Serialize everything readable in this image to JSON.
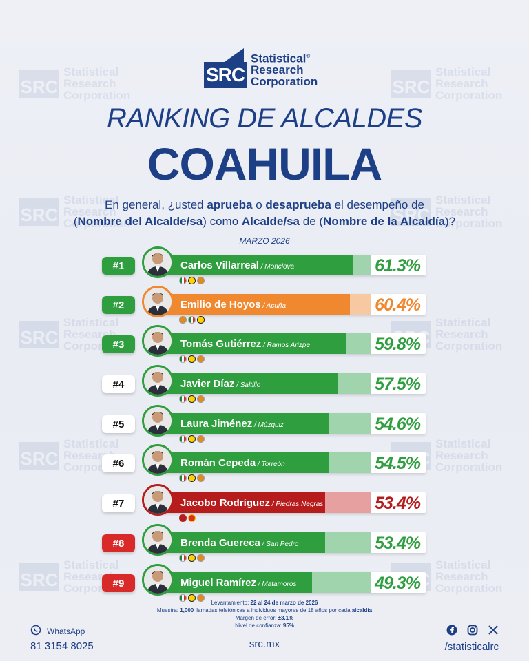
{
  "brand": {
    "logo_letters": "SRC",
    "name_line1": "Statistical",
    "name_line2": "Research",
    "name_line3": "Corporation",
    "reg": "®"
  },
  "header": {
    "title": "RANKING DE ALCALDES",
    "state": "COAHUILA",
    "q_part1": "En general, ¿usted ",
    "q_aprueba": "aprueba",
    "q_o": " o ",
    "q_desaprueba": "desaprueba",
    "q_part2": " el desempeño de",
    "q_paren_open": "(",
    "q_nombre": "Nombre del Alcalde/sa",
    "q_como": ") como ",
    "q_alcalde": "Alcalde/sa",
    "q_de": " de (",
    "q_alcaldia": "Nombre de la Alcaldía",
    "q_end": ")?",
    "date": "MARZO 2026"
  },
  "ranking": [
    {
      "rank": "#1",
      "name": "Carlos Villarreal",
      "city": " / Monclova",
      "pct": "61.3%",
      "value": 61.3
    },
    {
      "rank": "#2",
      "name": "Emilio de Hoyos",
      "city": " / Acuña",
      "pct": "60.4%",
      "value": 60.4
    },
    {
      "rank": "#3",
      "name": "Tomás Gutiérrez",
      "city": " / Ramos Arizpe",
      "pct": "59.8%",
      "value": 59.8
    },
    {
      "rank": "#4",
      "name": "Javier Díaz",
      "city": " / Saltillo",
      "pct": "57.5%",
      "value": 57.5
    },
    {
      "rank": "#5",
      "name": "Laura Jiménez",
      "city": " / Múzquiz",
      "pct": "54.6%",
      "value": 54.6
    },
    {
      "rank": "#6",
      "name": "Román Cepeda",
      "city": " / Torreón",
      "pct": "54.5%",
      "value": 54.5
    },
    {
      "rank": "#7",
      "name": "Jacobo Rodríguez",
      "city": " / Piedras Negras",
      "pct": "53.4%",
      "value": 53.4
    },
    {
      "rank": "#8",
      "name": "Brenda Guereca",
      "city": " / San Pedro",
      "pct": "53.4%",
      "value": 53.4
    },
    {
      "rank": "#9",
      "name": "Miguel Ramírez",
      "city": " / Matamoros",
      "pct": "49.3%",
      "value": 49.3
    }
  ],
  "colors": {
    "navy": "#1d3f86",
    "green": "#2e9e3f",
    "light_green": "#9fd4ad",
    "orange": "#f0882f",
    "light_orange": "#f7c9a2",
    "red": "#b71c1c",
    "light_red": "#e6a0a0",
    "rank_red": "#d92a2a"
  },
  "methodology": {
    "line1_label": "Levantamiento: ",
    "line1_value": "22 al 24 de marzo de 2026",
    "line2_label": "Muestra: ",
    "line2_value": "1,000",
    "line2_rest": " llamadas telefónicas a individuos mayores de 18 años por cada ",
    "line2_end": "alcaldía",
    "line3_label": "Margen de error: ",
    "line3_value": "±3.1%",
    "line4_label": "Nivel de confianza: ",
    "line4_value": "95%"
  },
  "footer": {
    "whatsapp_label": "WhatsApp",
    "whatsapp_number": "81 3154 8025",
    "site": "src.mx",
    "handle": "/statisticalrc",
    "icons": [
      "whatsapp-icon",
      "facebook-icon",
      "instagram-icon",
      "x-icon"
    ]
  }
}
